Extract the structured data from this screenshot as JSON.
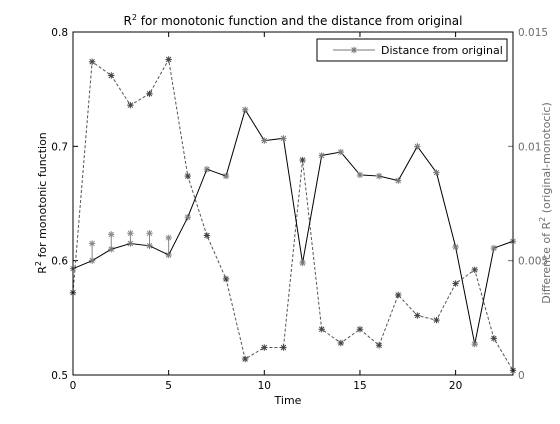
{
  "chart_data": {
    "type": "line",
    "title": "R",
    "title_sup": "2",
    "title_rest": " for monotonic function and the distance from original",
    "xlabel": "Time",
    "ylabel_left": {
      "main": "R",
      "sup": "2",
      "rest": " for monotonic function"
    },
    "ylabel_right": {
      "pre": "Difference of R",
      "sup": "2",
      "rest": " (original-monotocic)"
    },
    "xlim": [
      0,
      23
    ],
    "ylim_left": [
      0.5,
      0.8
    ],
    "ylim_right": [
      0,
      0.015
    ],
    "x_ticks": [
      0,
      5,
      10,
      15,
      20
    ],
    "y_left_ticks": [
      "0.5",
      "0.6",
      "0.7",
      "0.8"
    ],
    "y_right_ticks": [
      "0",
      "0.005",
      "0.01",
      "0.015"
    ],
    "legend": {
      "label": "Distance from original",
      "placement": "top-right"
    },
    "series": [
      {
        "name": "Distance from original",
        "axis": "right",
        "style": "dashed",
        "color": "#555555",
        "x": [
          0,
          1,
          2,
          3,
          4,
          5,
          6,
          7,
          8,
          9,
          10,
          11,
          12,
          13,
          14,
          15,
          16,
          17,
          18,
          19,
          20,
          21,
          22,
          23
        ],
        "values": [
          0.0036,
          0.0137,
          0.0131,
          0.0118,
          0.0123,
          0.0138,
          0.0087,
          0.0061,
          0.0042,
          0.0007,
          0.0012,
          0.0012,
          0.0094,
          0.002,
          0.0014,
          0.002,
          0.0013,
          0.0035,
          0.0026,
          0.0024,
          0.004,
          0.0046,
          0.0016,
          0.0002
        ]
      },
      {
        "name": "",
        "axis": "left",
        "style": "solid",
        "color": "#000000",
        "x": [
          0,
          1,
          2,
          3,
          4,
          5,
          6,
          7,
          8,
          9,
          10,
          11,
          12,
          13,
          14,
          15,
          16,
          17,
          18,
          19,
          20,
          21,
          22,
          23
        ],
        "values": [
          0.593,
          0.6,
          0.61,
          0.615,
          0.613,
          0.605,
          0.638,
          0.68,
          0.674,
          0.732,
          0.705,
          0.707,
          0.598,
          0.692,
          0.695,
          0.675,
          0.674,
          0.67,
          0.7,
          0.677,
          0.612,
          0.527,
          0.611,
          0.617
        ]
      }
    ],
    "marker_whiskers": {
      "x": [
        1,
        2,
        3,
        4,
        5
      ],
      "top": [
        0.615,
        0.623,
        0.624,
        0.624,
        0.62
      ]
    }
  }
}
